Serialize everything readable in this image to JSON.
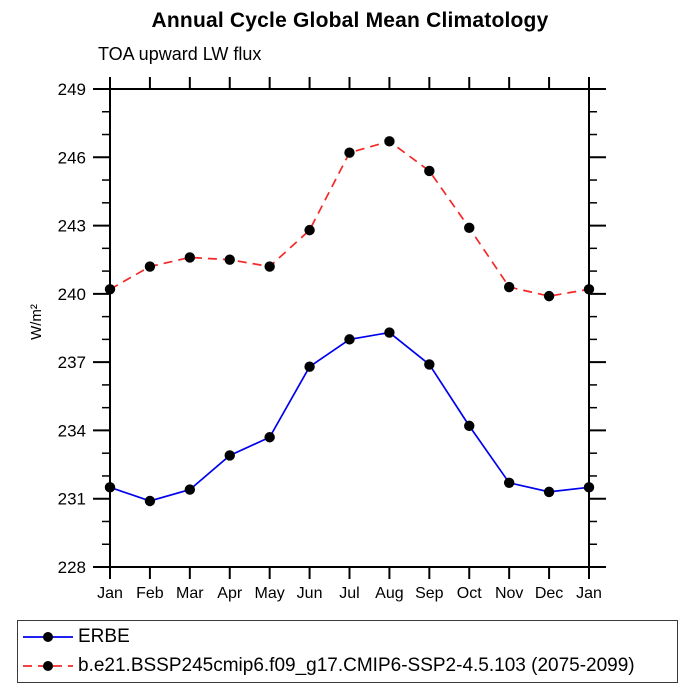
{
  "page": {
    "title": "Annual Cycle Global Mean Climatology",
    "subtitle": "TOA upward LW flux",
    "ylabel": "W/m²"
  },
  "chart_data": {
    "type": "line",
    "title": "Annual Cycle Global Mean Climatology",
    "subtitle": "TOA upward LW flux",
    "xlabel": "",
    "ylabel": "W/m²",
    "x_tick_labels": [
      "Jan",
      "Feb",
      "Mar",
      "Apr",
      "May",
      "Jun",
      "Jul",
      "Aug",
      "Sep",
      "Oct",
      "Nov",
      "Dec",
      "Jan"
    ],
    "y_ticks": [
      228,
      231,
      234,
      237,
      240,
      243,
      246,
      249
    ],
    "y_minor_step": 1,
    "ylim": [
      228,
      249
    ],
    "grid": false,
    "frame": "box-with-outward-ticks",
    "legend_position": "bottom-box",
    "marker": {
      "shape": "circle",
      "color": "#000000"
    },
    "series": [
      {
        "name": "ERBE",
        "color": "#0000ee",
        "line_style": "solid",
        "values": [
          231.5,
          230.9,
          231.4,
          232.9,
          233.7,
          236.8,
          238.0,
          238.3,
          236.9,
          234.2,
          231.7,
          231.3,
          231.5
        ]
      },
      {
        "name": "b.e21.BSSP245cmip6.f09_g17.CMIP6-SSP2-4.5.103 (2075-2099)",
        "color": "#f52828",
        "line_style": "dashed",
        "values": [
          240.2,
          241.2,
          241.6,
          241.5,
          241.2,
          242.8,
          246.2,
          246.7,
          245.4,
          242.9,
          240.3,
          239.9,
          240.2
        ]
      }
    ]
  }
}
